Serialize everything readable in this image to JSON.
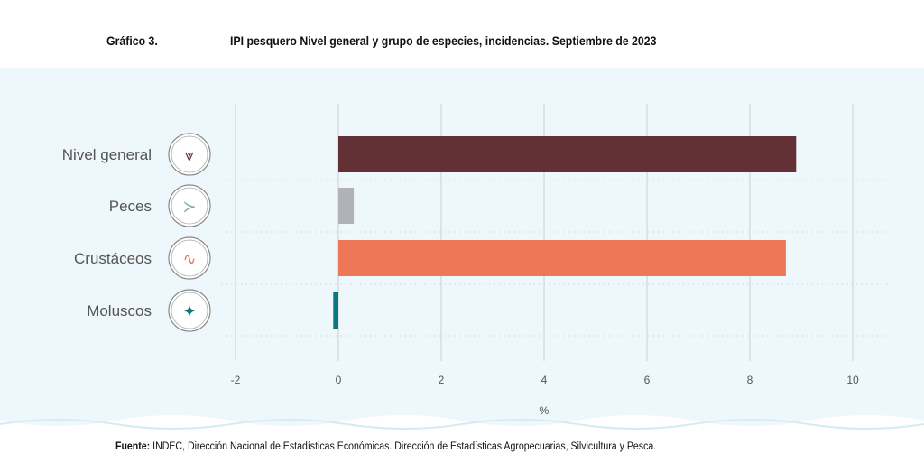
{
  "header": {
    "figure_number": "Gráfico 3.",
    "title": "IPI pesquero Nivel general y grupo de especies, incidencias. Septiembre de 2023"
  },
  "chart_data": {
    "type": "bar",
    "orientation": "horizontal",
    "title": "IPI pesquero Nivel general y grupo de especies, incidencias. Septiembre de 2023",
    "categories": [
      "Nivel general",
      "Peces",
      "Crustáceos",
      "Moluscos"
    ],
    "values": [
      8.9,
      0.3,
      8.7,
      -0.1
    ],
    "colors": [
      "#623035",
      "#b1b1b9",
      "#ee7757",
      "#0a7882"
    ],
    "icons": [
      "index-chart-icon",
      "fish-icon",
      "shrimp-icon",
      "squid-icon"
    ],
    "xlabel": "%",
    "xlim": [
      -2,
      10
    ],
    "xticks": [
      -2,
      0,
      2,
      4,
      6,
      8,
      10
    ],
    "grid": true
  },
  "footer": {
    "source_label": "Fuente:",
    "source_text": " INDEC, Dirección Nacional de Estadísticas Económicas. Dirección de Estadísticas Agropecuarias, Silvicultura y Pesca."
  }
}
